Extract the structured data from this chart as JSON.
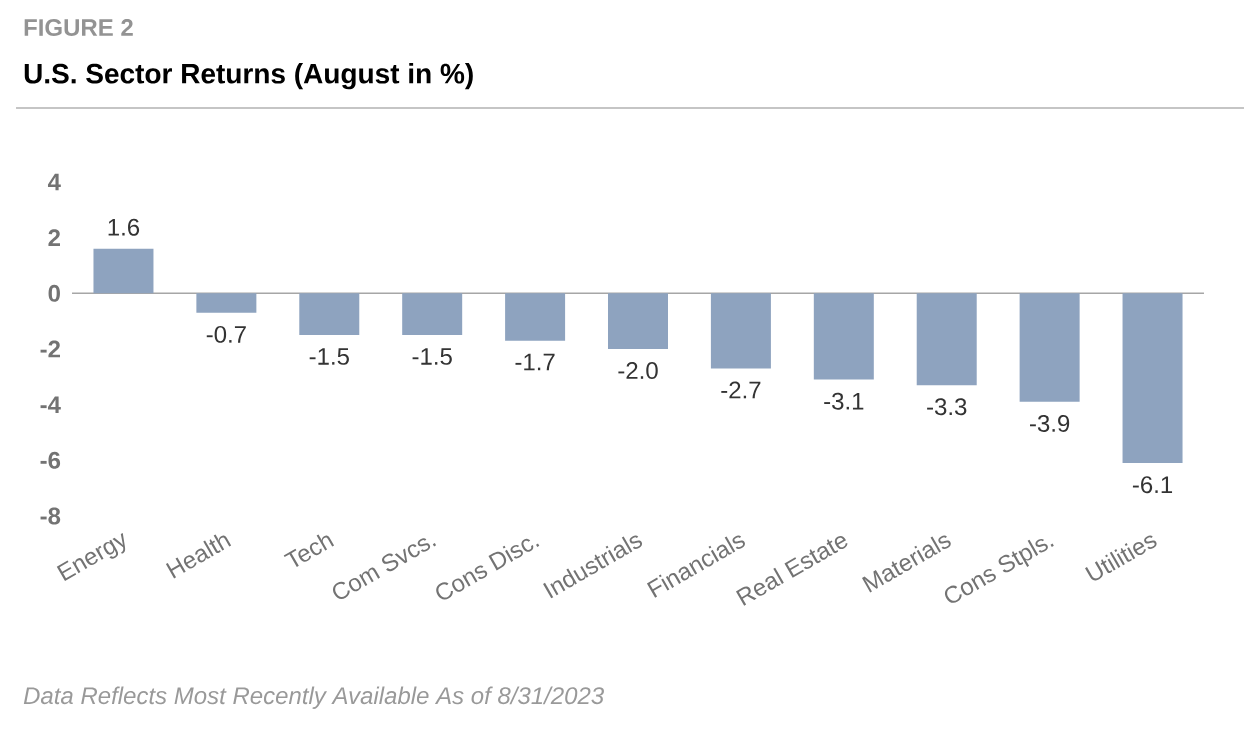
{
  "chart_data": {
    "type": "bar",
    "title": "U.S. Sector Returns (August in %)",
    "categories": [
      "Energy",
      "Health",
      "Tech",
      "Com Svcs.",
      "Cons Disc.",
      "Industrials",
      "Financials",
      "Real Estate",
      "Materials",
      "Cons Stpls.",
      "Utilities"
    ],
    "values": [
      1.6,
      -0.7,
      -1.5,
      -1.5,
      -1.7,
      -2.0,
      -2.7,
      -3.1,
      -3.3,
      -3.9,
      -6.1
    ],
    "value_labels": [
      "1.6",
      "-0.7",
      "-1.5",
      "-1.5",
      "-1.7",
      "-2.0",
      "-2.7",
      "-3.1",
      "-3.3",
      "-3.9",
      "-6.1"
    ],
    "color": "#8ea3bf",
    "ylim": [
      -8,
      4
    ],
    "yticks": [
      -8,
      -6,
      -4,
      -2,
      0,
      2,
      4
    ],
    "annotations": [
      "FIGURE 2",
      "Data Reflects Most Recently Available As of 8/31/2023"
    ]
  }
}
